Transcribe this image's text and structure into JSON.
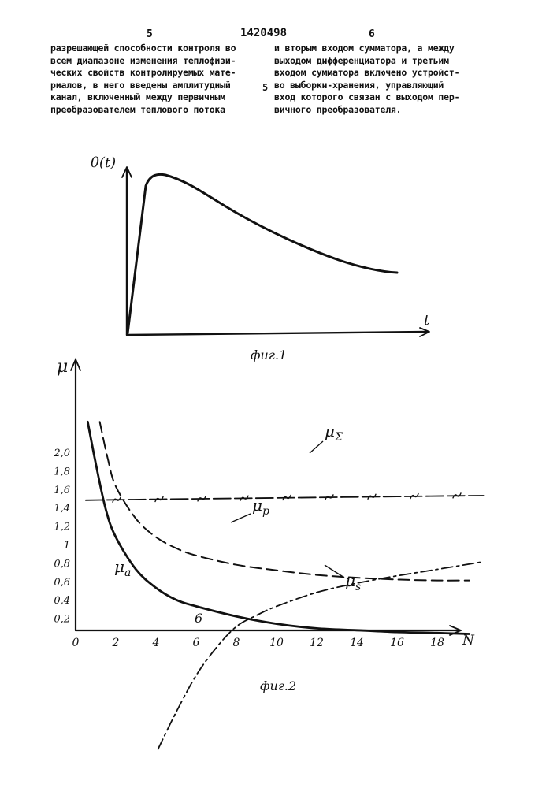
{
  "header": {
    "page_left": "5",
    "patent_number": "1420498",
    "page_right": "6"
  },
  "left_column": [
    "разрешающей способности контроля во",
    "всем диапазоне изменения теплофизи-",
    "ческих свойств контролируемых мате-",
    "риалов, в него введены амплитудный",
    "канал, включенный между первичным",
    "преобразователем теплового потока"
  ],
  "margin_line_number": "5",
  "right_column": [
    "и вторым входом сумматора, а между",
    "выходом дифференциатора и третьим",
    "входом сумматора включено устройст-",
    "во выборки-хранения, управляющий",
    "вход которого связан с выходом пер-",
    "вичного преобразователя."
  ],
  "figure1": {
    "caption": "фиг.1",
    "y_label": "θ(t)",
    "x_label": "t"
  },
  "figure2": {
    "caption": "фиг.2",
    "y_axis_label": "μ",
    "x_axis_label": "N",
    "point_label": "6",
    "chart_data": {
      "type": "line",
      "xlim": [
        0,
        20
      ],
      "ylim": [
        -1.2,
        2.4
      ],
      "x_ticks": [
        0,
        2,
        4,
        6,
        8,
        10,
        12,
        14,
        16,
        18
      ],
      "x_tick_labels": [
        "0",
        "2",
        "4",
        "6",
        "8",
        "10",
        "12",
        "14",
        "16",
        "18"
      ],
      "y_ticks": [
        0.2,
        0.4,
        0.6,
        0.8,
        1.0,
        1.2,
        1.4,
        1.6,
        1.8,
        2.0
      ],
      "y_tick_labels": [
        "0,2",
        "0,4",
        "0,6",
        "0,8",
        "1",
        "1,2",
        "1,4",
        "1,6",
        "1,8",
        "2,0"
      ],
      "grid": false,
      "series": [
        {
          "name": "μΣ",
          "style": "dash-wave",
          "x": [
            0.5,
            4,
            8,
            12,
            16,
            20.3
          ],
          "y": [
            1.6,
            1.61,
            1.62,
            1.63,
            1.64,
            1.65
          ]
        },
        {
          "name": "μp",
          "style": "dashed",
          "x": [
            1.2,
            1.6,
            2,
            3,
            4,
            5,
            6,
            8,
            10,
            12,
            14,
            16,
            18,
            19.6
          ],
          "y": [
            2.45,
            2.05,
            1.75,
            1.4,
            1.2,
            1.08,
            1.0,
            0.9,
            0.84,
            0.79,
            0.76,
            0.74,
            0.73,
            0.73
          ]
        },
        {
          "name": "μa",
          "style": "solid",
          "x": [
            0.6,
            1,
            1.5,
            2,
            3,
            4,
            5,
            6,
            8,
            10,
            12,
            14,
            16,
            18,
            19.6
          ],
          "y": [
            2.45,
            2.0,
            1.5,
            1.2,
            0.85,
            0.65,
            0.52,
            0.45,
            0.34,
            0.26,
            0.21,
            0.19,
            0.17,
            0.16,
            0.15
          ]
        },
        {
          "name": "μs",
          "style": "dash-dot",
          "x": [
            4.1,
            5,
            6,
            7,
            8,
            9,
            10,
            12,
            14,
            16,
            18,
            20.2
          ],
          "y": [
            -1.1,
            -0.7,
            -0.3,
            0.0,
            0.23,
            0.35,
            0.45,
            0.6,
            0.7,
            0.78,
            0.85,
            0.93
          ]
        }
      ]
    }
  }
}
